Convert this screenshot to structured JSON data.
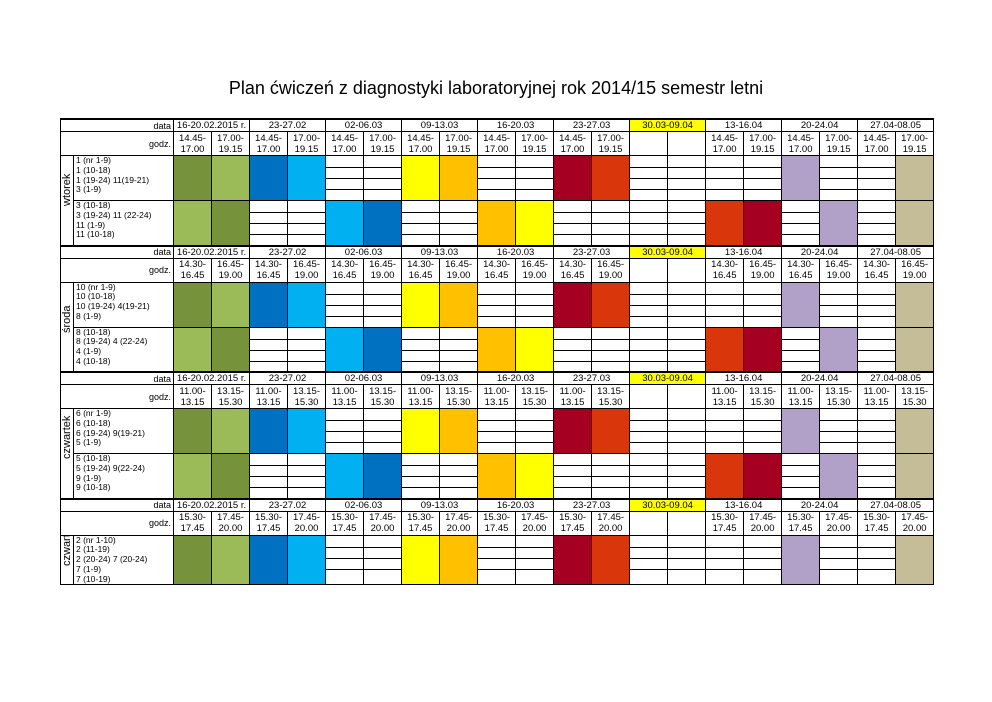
{
  "title": "Plan ćwiczeń  z diagnostyki laboratoryjnej rok 2014/15 semestr letni",
  "labels": {
    "date": "data",
    "hours": "godz."
  },
  "weeks": [
    "16-20.02.2015 r.",
    "23-27.02",
    "02-06.03",
    "09-13.03",
    "16-20.03",
    "23-27.03",
    "30.03-09.04",
    "13-16.04",
    "20-24.04",
    "27.04-08.05"
  ],
  "highlight_week_index": 6,
  "highlight_color": "#ffff00",
  "colors": {
    "dgreen": "#76933c",
    "lgreen": "#9bbb59",
    "blue": "#0070c0",
    "lblue": "#00b0f0",
    "yellow": "#ffff00",
    "gold": "#ffc000",
    "dred": "#a50021",
    "red": "#d9360b",
    "lav": "#b1a0c7",
    "tan": "#c4bd97"
  },
  "sections": [
    {
      "day": "wtorek",
      "hours": [
        "14.45-",
        "17.00",
        "17.00-",
        "19.15"
      ],
      "groups": [
        [
          "1 (nr 1-9)",
          "1 (10-18)",
          "1 (19-24) 11(19-21)",
          "3 (1-9)"
        ],
        [
          "3 (10-18)",
          "3 (19-24) 11 (22-24)",
          "11 (1-9)",
          "11 (10-18)"
        ]
      ]
    },
    {
      "day": "środa",
      "hours": [
        "14.30-",
        "16.45",
        "16.45-",
        "19.00"
      ],
      "groups": [
        [
          "10 (nr 1-9)",
          "10 (10-18)",
          "10 (19-24) 4(19-21)",
          "8 (1-9)"
        ],
        [
          "8 (10-18)",
          "8 (19-24) 4 (22-24)",
          "4 (1-9)",
          "4 (10-18)"
        ]
      ]
    },
    {
      "day": "czwartek",
      "hours": [
        "11.00-",
        "13.15",
        "13.15-",
        "15.30"
      ],
      "groups": [
        [
          "6 (nr 1-9)",
          "6 (10-18)",
          "6 (19-24) 9(19-21)",
          "5 (1-9)"
        ],
        [
          "5 (10-18)",
          "5 (19-24) 9(22-24)",
          "9 (1-9)",
          "9 (10-18)"
        ]
      ]
    },
    {
      "day": "czwartek",
      "hours": [
        "15.30-",
        "17.45",
        "17.45-",
        "20.00"
      ],
      "groups": [
        [
          "2 (nr 1-10)",
          "2 (11-19)",
          "2 (20-24) 7 (20-24)",
          "7 (1-9)",
          "7 (10-19)"
        ]
      ]
    }
  ],
  "grid": {
    "two_band": [
      [
        "dgreen",
        "lgreen",
        "blue",
        "lblue",
        "",
        "",
        "yellow",
        "gold",
        "",
        "",
        "dred",
        "red",
        "",
        "",
        "",
        "",
        "lav",
        "",
        "",
        "tan"
      ],
      [
        "lgreen",
        "dgreen",
        "",
        "",
        "lblue",
        "blue",
        "",
        "",
        "gold",
        "yellow",
        "",
        "",
        "",
        "",
        "red",
        "dred",
        "",
        "lav",
        "",
        "tan"
      ]
    ],
    "one_band": [
      [
        "dgreen",
        "lgreen",
        "blue",
        "lblue",
        "",
        "",
        "yellow",
        "gold",
        "",
        "",
        "dred",
        "red",
        "",
        "",
        "",
        "",
        "lav",
        "",
        "",
        "tan"
      ]
    ]
  }
}
